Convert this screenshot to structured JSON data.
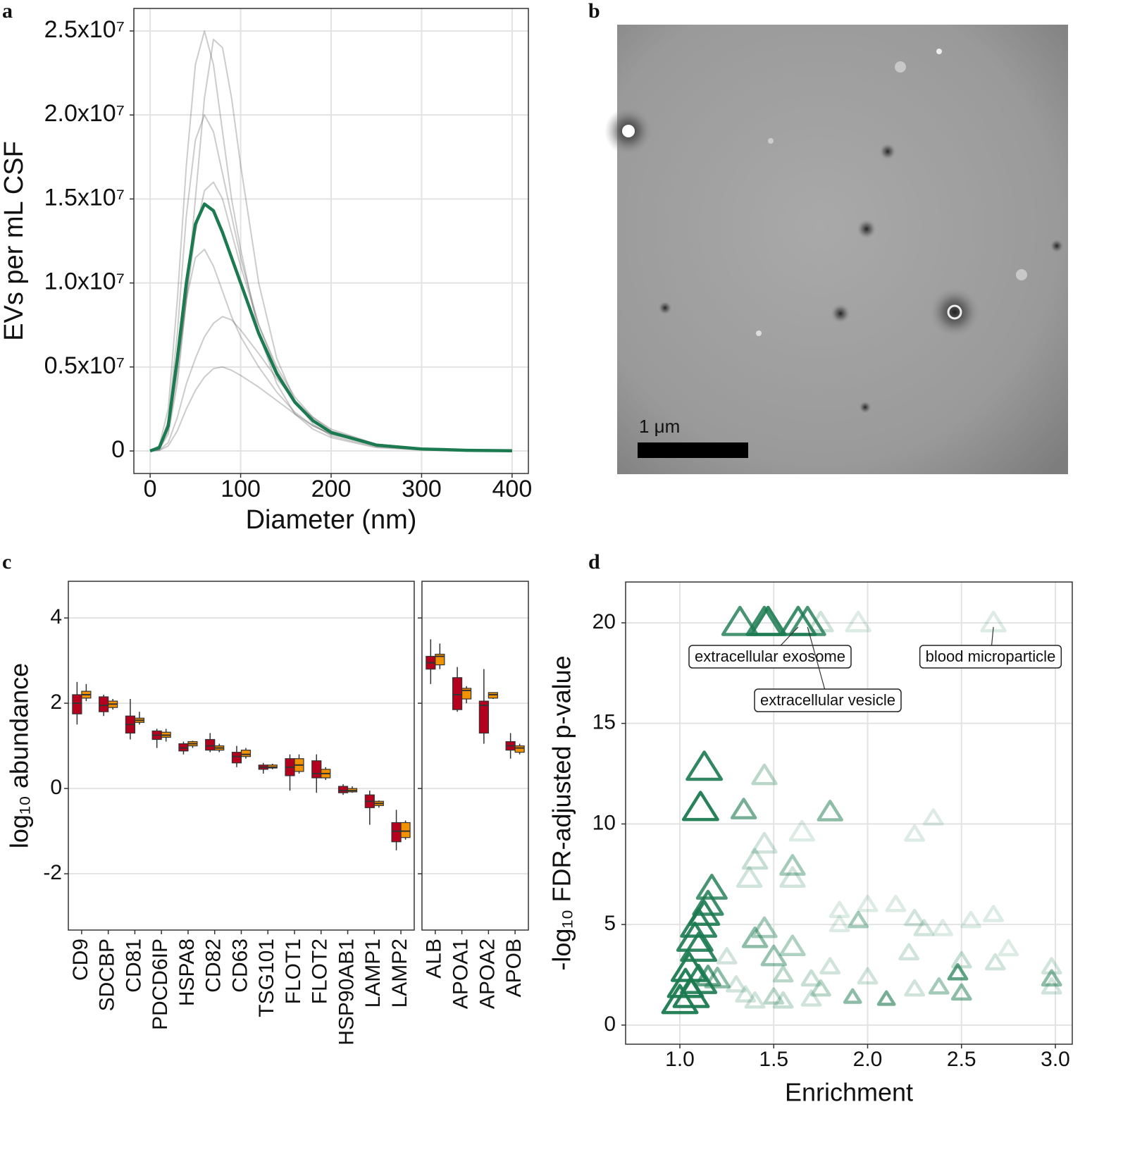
{
  "chart_data": [
    {
      "panel": "a",
      "type": "line",
      "xlabel": "Diameter (nm)",
      "ylabel": "EVs per mL CSF",
      "x": [
        0,
        10,
        20,
        30,
        40,
        50,
        60,
        70,
        80,
        90,
        100,
        120,
        140,
        160,
        180,
        200,
        250,
        300,
        350,
        400
      ],
      "series": [
        {
          "color": "#555555",
          "opacity": 0.3,
          "values": [
            0,
            300000.0,
            2500000.0,
            9000000.0,
            17000000.0,
            23000000.0,
            25000000.0,
            23000000.0,
            19000000.0,
            15000000.0,
            12000000.0,
            7000000.0,
            4000000.0,
            2200000.0,
            1300000.0,
            800000.0,
            200000.0,
            60000.0,
            20000.0,
            0
          ]
        },
        {
          "color": "#555555",
          "opacity": 0.3,
          "values": [
            0,
            100000.0,
            1000000.0,
            4000000.0,
            9000000.0,
            15000000.0,
            21000000.0,
            24500000.0,
            24000000.0,
            21000000.0,
            17000000.0,
            10000000.0,
            5500000.0,
            3000000.0,
            1600000.0,
            900000.0,
            250000.0,
            80000.0,
            20000.0,
            0
          ]
        },
        {
          "color": "#555555",
          "opacity": 0.3,
          "values": [
            0,
            200000.0,
            1800000.0,
            7000000.0,
            14000000.0,
            18500000.0,
            20000000.0,
            19000000.0,
            16500000.0,
            14000000.0,
            11500000.0,
            7500000.0,
            4800000.0,
            3000000.0,
            1800000.0,
            1100000.0,
            300000.0,
            100000.0,
            30000.0,
            0
          ]
        },
        {
          "color": "#555555",
          "opacity": 0.3,
          "values": [
            0,
            200000.0,
            1500000.0,
            5000000.0,
            9000000.0,
            11500000.0,
            12000000.0,
            11000000.0,
            9500000.0,
            8000000.0,
            6800000.0,
            5000000.0,
            3500000.0,
            2300000.0,
            1500000.0,
            1000000.0,
            350000.0,
            120000.0,
            40000.0,
            0
          ]
        },
        {
          "color": "#555555",
          "opacity": 0.3,
          "values": [
            0,
            50000.0,
            500000.0,
            2000000.0,
            4000000.0,
            5500000.0,
            6800000.0,
            7600000.0,
            8000000.0,
            7800000.0,
            7200000.0,
            5800000.0,
            4300000.0,
            3000000.0,
            2000000.0,
            1300000.0,
            400000.0,
            150000.0,
            50000.0,
            0
          ]
        },
        {
          "color": "#555555",
          "opacity": 0.3,
          "values": [
            0,
            30000.0,
            300000.0,
            1200000.0,
            2500000.0,
            3600000.0,
            4400000.0,
            4900000.0,
            5000000.0,
            4800000.0,
            4500000.0,
            3800000.0,
            3000000.0,
            2200000.0,
            1500000.0,
            1000000.0,
            400000.0,
            150000.0,
            50000.0,
            0
          ]
        },
        {
          "color": "#555555",
          "opacity": 0.3,
          "values": [
            0,
            100000.0,
            1200000.0,
            4500000.0,
            9000000.0,
            13000000.0,
            15500000.0,
            16000000.0,
            15000000.0,
            13000000.0,
            11000000.0,
            7500000.0,
            5000000.0,
            3200000.0,
            2000000.0,
            1200000.0,
            400000.0,
            150000.0,
            50000.0,
            0
          ]
        },
        {
          "color": "#1b7a50",
          "opacity": 1,
          "values": [
            0,
            200000.0,
            1500000.0,
            5500000.0,
            10000000.0,
            13500000.0,
            14700000.0,
            14300000.0,
            13000000.0,
            11500000.0,
            10000000.0,
            7000000.0,
            4600000.0,
            2900000.0,
            1800000.0,
            1100000.0,
            350000.0,
            120000.0,
            40000.0,
            10000.0
          ]
        }
      ],
      "xlim": [
        -18,
        418
      ],
      "ylim": [
        -1340000,
        26340000
      ],
      "xticks": [
        0,
        100,
        200,
        300,
        400
      ],
      "yticks": [
        0,
        {
          "value": 5000000,
          "label": "0.5x10⁷"
        },
        {
          "value": 10000000,
          "label": "1.0x10⁷"
        },
        {
          "value": 15000000,
          "label": "1.5x10⁷"
        },
        {
          "value": 20000000,
          "label": "2.0x10⁷"
        },
        {
          "value": 25000000,
          "label": "2.5x10⁷"
        }
      ],
      "grid": true
    },
    {
      "panel": "b",
      "type": "image",
      "scale_bar_label": "1 μm"
    },
    {
      "panel": "c",
      "type": "box",
      "ylabel": "log₁₀ abundance",
      "ylim": [
        -3.32,
        4.86
      ],
      "yticks": [
        -2,
        0,
        2,
        4
      ],
      "grid": true,
      "facets": [
        {
          "categories": [
            "CD9",
            "SDCBP",
            "CD81",
            "PDCD6IP",
            "HSPA8",
            "CD82",
            "CD63",
            "TSG101",
            "FLOT1",
            "FLOT2",
            "HSP90AB1",
            "LAMP1",
            "LAMP2"
          ],
          "series": [
            {
              "color": "#b5001e",
              "values": [
                [
                  1.5,
                  1.75,
                  2.0,
                  2.2,
                  2.5
                ],
                [
                  1.7,
                  1.8,
                  1.95,
                  2.15,
                  2.2
                ],
                [
                  1.15,
                  1.3,
                  1.5,
                  1.7,
                  2.1
                ],
                [
                  0.95,
                  1.15,
                  1.25,
                  1.35,
                  1.4
                ],
                [
                  0.8,
                  0.88,
                  0.95,
                  1.05,
                  1.1
                ],
                [
                  0.85,
                  0.9,
                  1.0,
                  1.15,
                  1.3
                ],
                [
                  0.5,
                  0.6,
                  0.75,
                  0.85,
                  1.0
                ],
                [
                  0.35,
                  0.45,
                  0.5,
                  0.55,
                  0.6
                ],
                [
                  -0.05,
                  0.3,
                  0.5,
                  0.7,
                  0.8
                ],
                [
                  -0.1,
                  0.25,
                  0.35,
                  0.65,
                  0.8
                ],
                [
                  -0.15,
                  -0.1,
                  -0.05,
                  0.05,
                  0.1
                ],
                [
                  -0.85,
                  -0.45,
                  -0.3,
                  -0.15,
                  -0.05
                ],
                [
                  -1.45,
                  -1.25,
                  -1.0,
                  -0.8,
                  -0.5
                ]
              ]
            },
            {
              "color": "#f39200",
              "values": [
                [
                  2.05,
                  2.12,
                  2.2,
                  2.28,
                  2.45
                ],
                [
                  1.85,
                  1.9,
                  1.98,
                  2.05,
                  2.1
                ],
                [
                  1.5,
                  1.55,
                  1.6,
                  1.65,
                  1.8
                ],
                [
                  1.1,
                  1.2,
                  1.25,
                  1.32,
                  1.4
                ],
                [
                  0.95,
                  1.0,
                  1.05,
                  1.1,
                  1.12
                ],
                [
                  0.85,
                  0.9,
                  0.95,
                  1.0,
                  1.05
                ],
                [
                  0.7,
                  0.75,
                  0.8,
                  0.9,
                  0.95
                ],
                [
                  0.45,
                  0.48,
                  0.5,
                  0.55,
                  0.58
                ],
                [
                  0.35,
                  0.4,
                  0.55,
                  0.7,
                  0.8
                ],
                [
                  0.2,
                  0.25,
                  0.35,
                  0.45,
                  0.5
                ],
                [
                  -0.1,
                  -0.08,
                  -0.05,
                  0.0,
                  0.05
                ],
                [
                  -0.45,
                  -0.4,
                  -0.35,
                  -0.3,
                  -0.28
                ],
                [
                  -1.2,
                  -1.15,
                  -1.0,
                  -0.8,
                  -0.75
                ]
              ]
            }
          ]
        },
        {
          "categories": [
            "ALB",
            "APOA1",
            "APOA2",
            "APOB"
          ],
          "series": [
            {
              "color": "#b5001e",
              "values": [
                [
                  2.45,
                  2.8,
                  2.95,
                  3.1,
                  3.5
                ],
                [
                  1.8,
                  1.85,
                  2.2,
                  2.6,
                  2.85
                ],
                [
                  1.05,
                  1.3,
                  1.95,
                  2.05,
                  2.8
                ],
                [
                  0.7,
                  0.9,
                  1.0,
                  1.1,
                  1.3
                ]
              ]
            },
            {
              "color": "#f39200",
              "values": [
                [
                  2.8,
                  2.9,
                  3.1,
                  3.15,
                  3.4
                ],
                [
                  2.0,
                  2.1,
                  2.3,
                  2.35,
                  2.4
                ],
                [
                  2.1,
                  2.12,
                  2.2,
                  2.25,
                  2.25
                ],
                [
                  0.8,
                  0.85,
                  0.95,
                  1.0,
                  1.05
                ]
              ]
            }
          ]
        }
      ]
    },
    {
      "panel": "d",
      "type": "scatter",
      "xlabel": "Enrichment",
      "ylabel": "-log₁₀ FDR-adjusted p-value",
      "color": "#1b7a50",
      "xlim": [
        0.711,
        3.09
      ],
      "ylim": [
        -0.95,
        22.03
      ],
      "xticks": [
        {
          "value": 1,
          "label": "1.0"
        },
        1.5,
        {
          "value": 2,
          "label": "2.0"
        },
        2.5,
        {
          "value": 3,
          "label": "3.0"
        }
      ],
      "yticks": [
        0,
        5,
        10,
        15,
        20
      ],
      "grid": true,
      "x": [
        1.32,
        1.45,
        1.47,
        1.63,
        1.68,
        1.75,
        1.95,
        2.67,
        1.13,
        1.45,
        1.11,
        1.34,
        1.8,
        2.35,
        2.25,
        1.45,
        1.65,
        1.4,
        1.6,
        1.6,
        1.37,
        1.17,
        1.15,
        1.13,
        1.1,
        1.08,
        1.1,
        1.05,
        1.03,
        1.06,
        1.0,
        1.1,
        1.15,
        1.2,
        1.3,
        1.35,
        1.4,
        1.5,
        1.45,
        1.4,
        1.5,
        1.6,
        1.55,
        1.7,
        1.75,
        1.85,
        1.85,
        1.95,
        2.0,
        2.15,
        2.25,
        2.3,
        2.4,
        2.55,
        2.67,
        2.75,
        2.5,
        2.48,
        2.5,
        2.38,
        2.25,
        2.1,
        1.92,
        1.8,
        2.0,
        2.22,
        2.98,
        2.98,
        2.98,
        2.68,
        1.25,
        1.7,
        1.55
      ],
      "values": [
        20,
        20,
        20,
        20,
        20,
        20,
        20,
        20,
        12.8,
        12.4,
        10.8,
        10.7,
        10.6,
        10.3,
        9.5,
        9.0,
        9.6,
        8.2,
        7.9,
        7.3,
        7.3,
        6.8,
        6.0,
        5.5,
        5.0,
        4.3,
        3.8,
        2.8,
        2.0,
        1.5,
        1.2,
        2.2,
        2.4,
        2.3,
        2.0,
        1.5,
        1.2,
        1.4,
        4.8,
        4.3,
        3.4,
        3.9,
        2.5,
        2.3,
        1.8,
        5.7,
        5.0,
        5.2,
        6.0,
        6.0,
        5.3,
        4.8,
        4.8,
        5.2,
        5.5,
        3.8,
        3.2,
        2.6,
        1.6,
        1.9,
        1.8,
        1.3,
        1.4,
        2.9,
        2.4,
        3.6,
        2.9,
        2.3,
        1.9,
        3.1,
        3.4,
        1.3,
        1.2
      ],
      "sizes": [
        3,
        3,
        3,
        3,
        3,
        2,
        2,
        2,
        3,
        2,
        3,
        2,
        2,
        1.5,
        1.5,
        2,
        2,
        2,
        2,
        2,
        2,
        2.5,
        2.5,
        2.5,
        3,
        3,
        3,
        3,
        3,
        3,
        3,
        3,
        2,
        2,
        1.5,
        1.5,
        1.5,
        1.5,
        2,
        2,
        2,
        2,
        1.5,
        1.5,
        1.5,
        1.5,
        1.5,
        1.5,
        1.5,
        1.5,
        1.5,
        1.5,
        1.5,
        1.5,
        1.5,
        1.5,
        1.5,
        1.5,
        1.5,
        1.5,
        1.5,
        1.3,
        1.3,
        1.5,
        1.5,
        1.5,
        1.5,
        1.5,
        1.5,
        1.5,
        1.5,
        1.5,
        1.5
      ],
      "alphas": [
        0.8,
        0.85,
        0.9,
        0.85,
        0.8,
        0.2,
        0.15,
        0.15,
        0.9,
        0.3,
        0.95,
        0.6,
        0.5,
        0.15,
        0.15,
        0.2,
        0.15,
        0.25,
        0.4,
        0.2,
        0.2,
        0.8,
        0.85,
        0.9,
        0.9,
        0.9,
        0.9,
        0.95,
        0.95,
        0.95,
        0.95,
        0.9,
        0.7,
        0.5,
        0.2,
        0.2,
        0.2,
        0.3,
        0.4,
        0.5,
        0.45,
        0.35,
        0.3,
        0.25,
        0.3,
        0.15,
        0.15,
        0.4,
        0.15,
        0.15,
        0.2,
        0.2,
        0.15,
        0.15,
        0.15,
        0.15,
        0.25,
        0.7,
        0.5,
        0.4,
        0.2,
        0.6,
        0.5,
        0.2,
        0.2,
        0.2,
        0.2,
        0.5,
        0.2,
        0.2,
        0.2,
        0.2,
        0.25
      ],
      "labels": [
        null,
        null,
        null,
        "extracellular exosome",
        "extracellular vesicle",
        null,
        null,
        "blood microparticle",
        null,
        null,
        null,
        null,
        null,
        null,
        null,
        null,
        null,
        null,
        null,
        null,
        null,
        null,
        null,
        null,
        null,
        null,
        null,
        null,
        null,
        null,
        null,
        null,
        null,
        null,
        null,
        null,
        null,
        null,
        null,
        null,
        null,
        null,
        null,
        null,
        null,
        null,
        null,
        null,
        null,
        null,
        null,
        null,
        null,
        null,
        null,
        null,
        null,
        null,
        null,
        null,
        null,
        null,
        null,
        null,
        null,
        null,
        null,
        null,
        null,
        null,
        null,
        null,
        null
      ]
    }
  ]
}
